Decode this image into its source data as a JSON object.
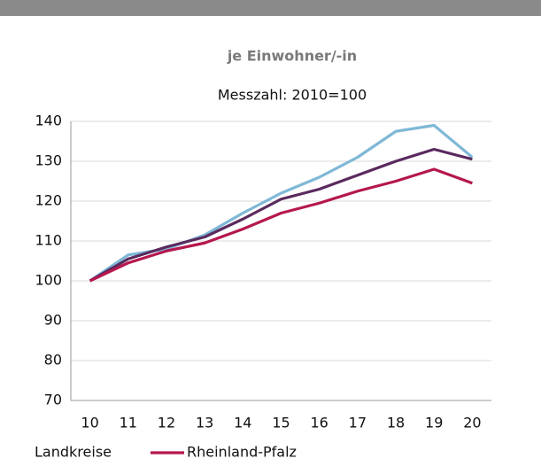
{
  "chart_data": {
    "type": "line",
    "subtitle": "je Einwohner/-in",
    "note": "Messzahl: 2010=100",
    "categories": [
      "10",
      "11",
      "12",
      "13",
      "14",
      "15",
      "16",
      "17",
      "18",
      "19",
      "20"
    ],
    "series": [
      {
        "color": "#7fb8d6",
        "values": [
          100,
          106.5,
          108,
          111.5,
          117,
          122,
          126,
          131,
          137.5,
          139,
          131
        ]
      },
      {
        "name": "Landkreise",
        "color": "#5a2a5e",
        "values": [
          100,
          105.5,
          108.5,
          111,
          115.5,
          120.5,
          123,
          126.5,
          130,
          133,
          130.5
        ]
      },
      {
        "name": "Rheinland-Pfalz",
        "color": "#b5174f",
        "values": [
          100,
          104.5,
          107.5,
          109.5,
          113,
          117,
          119.5,
          122.5,
          125,
          128,
          124.5
        ]
      }
    ],
    "ylim": [
      70,
      140
    ],
    "yticks": [
      70,
      80,
      90,
      100,
      110,
      120,
      130,
      140
    ],
    "grid": true
  }
}
